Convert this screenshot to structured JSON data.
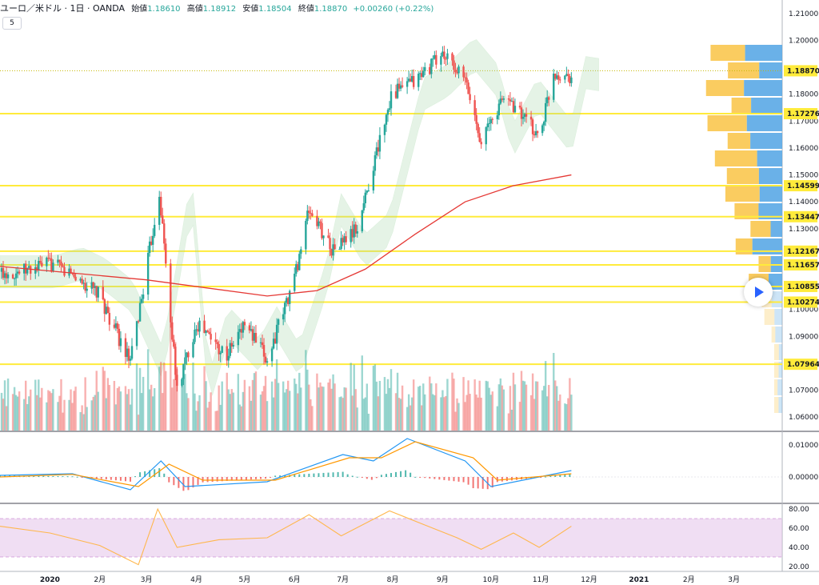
{
  "legend": {
    "symbol": "ユーロ／米ドル · 1日 · OANDA",
    "open_label": "始値",
    "open": "1.18610",
    "high_label": "高値",
    "high": "1.18912",
    "low_label": "安値",
    "low": "1.18504",
    "close_label": "終値",
    "close": "1.18870",
    "change": "+0.00260 (+0.22%)"
  },
  "indicator_toggle": "5",
  "colors": {
    "up": "#26a69a",
    "down": "#ef5350",
    "level_line": "#ffeb3b",
    "ma": "#e53935",
    "macd": "#2196f3",
    "signal": "#ff9800",
    "rsi": "#ffb74d",
    "rsi_band": "#e1bee7",
    "vp_buy": "#5aa9e6",
    "vp_sell": "#f9c74f"
  },
  "chart_data": [
    {
      "type": "candlestick",
      "title": "",
      "x_range": [
        "2019-12-01",
        "2021-03-31"
      ],
      "ylim": [
        1.055,
        1.215
      ],
      "y_ticks": [
        "1.21000",
        "1.20000",
        "1.18000",
        "1.17000",
        "1.16000",
        "1.15000",
        "1.14000",
        "1.13000",
        "1.10000",
        "1.09000",
        "1.07000",
        "1.06000"
      ],
      "x_ticks": [
        "2020",
        "2月",
        "3月",
        "4月",
        "5月",
        "6月",
        "7月",
        "8月",
        "9月",
        "10月",
        "11月",
        "12月",
        "2021",
        "2月",
        "3月"
      ],
      "x_tick_dates": [
        "2020-01-01",
        "2020-02-01",
        "2020-03-01",
        "2020-04-01",
        "2020-05-01",
        "2020-06-01",
        "2020-07-01",
        "2020-08-01",
        "2020-09-01",
        "2020-10-01",
        "2020-11-01",
        "2020-12-01",
        "2021-01-01",
        "2021-02-01",
        "2021-03-01"
      ],
      "price_levels": [
        "1.18870",
        "1.17276",
        "1.14599",
        "1.13447",
        "1.12167",
        "1.11657",
        "1.10855",
        "1.10274",
        "1.07964"
      ],
      "last_price": "1.18870",
      "closes": [
        [
          "2019-12-15",
          1.114
        ],
        [
          "2020-01-01",
          1.117
        ],
        [
          "2020-01-15",
          1.113
        ],
        [
          "2020-02-01",
          1.105
        ],
        [
          "2020-02-20",
          1.08
        ],
        [
          "2020-03-01",
          1.115
        ],
        [
          "2020-03-09",
          1.144
        ],
        [
          "2020-03-20",
          1.07
        ],
        [
          "2020-04-01",
          1.095
        ],
        [
          "2020-04-20",
          1.083
        ],
        [
          "2020-05-01",
          1.095
        ],
        [
          "2020-05-15",
          1.081
        ],
        [
          "2020-06-01",
          1.112
        ],
        [
          "2020-06-10",
          1.137
        ],
        [
          "2020-06-25",
          1.122
        ],
        [
          "2020-07-10",
          1.13
        ],
        [
          "2020-07-31",
          1.18
        ],
        [
          "2020-08-15",
          1.185
        ],
        [
          "2020-09-01",
          1.195
        ],
        [
          "2020-09-15",
          1.185
        ],
        [
          "2020-09-25",
          1.163
        ],
        [
          "2020-10-10",
          1.18
        ],
        [
          "2020-10-31",
          1.164
        ],
        [
          "2020-11-09",
          1.188
        ],
        [
          "2020-11-20",
          1.187
        ]
      ],
      "ma_200": [
        [
          "2019-12-01",
          1.116
        ],
        [
          "2020-03-01",
          1.111
        ],
        [
          "2020-05-15",
          1.105
        ],
        [
          "2020-06-15",
          1.107
        ],
        [
          "2020-07-15",
          1.115
        ],
        [
          "2020-08-15",
          1.128
        ],
        [
          "2020-09-15",
          1.14
        ],
        [
          "2020-10-15",
          1.146
        ],
        [
          "2020-11-20",
          1.15
        ]
      ]
    },
    {
      "type": "line",
      "title": "",
      "ylim": [
        -0.008,
        0.014
      ],
      "y_ticks": [
        "0.01000",
        "0.00000"
      ],
      "series": [
        {
          "values": [
            [
              "2019-12-01",
              0.0005
            ],
            [
              "2020-01-15",
              0.001
            ],
            [
              "2020-02-20",
              -0.004
            ],
            [
              "2020-03-10",
              0.005
            ],
            [
              "2020-03-25",
              -0.003
            ],
            [
              "2020-05-15",
              -0.0015
            ],
            [
              "2020-07-01",
              0.007
            ],
            [
              "2020-07-20",
              0.005
            ],
            [
              "2020-08-10",
              0.012
            ],
            [
              "2020-09-15",
              0.005
            ],
            [
              "2020-10-01",
              -0.003
            ],
            [
              "2020-11-20",
              0.002
            ]
          ]
        },
        {
          "values": [
            [
              "2019-12-01",
              0.0
            ],
            [
              "2020-01-15",
              0.0008
            ],
            [
              "2020-02-25",
              -0.003
            ],
            [
              "2020-03-15",
              0.004
            ],
            [
              "2020-04-05",
              -0.001
            ],
            [
              "2020-05-20",
              -0.001
            ],
            [
              "2020-07-05",
              0.006
            ],
            [
              "2020-07-25",
              0.006
            ],
            [
              "2020-08-15",
              0.011
            ],
            [
              "2020-09-20",
              0.006
            ],
            [
              "2020-10-05",
              -0.001
            ],
            [
              "2020-11-20",
              0.001
            ]
          ]
        }
      ]
    },
    {
      "type": "line",
      "title": "",
      "ylim": [
        15,
        85
      ],
      "y_ticks": [
        "80.00",
        "60.00",
        "40.00",
        "20.00"
      ],
      "band": [
        30,
        70
      ],
      "series": [
        {
          "values": [
            [
              "2019-12-01",
              62
            ],
            [
              "2020-01-01",
              55
            ],
            [
              "2020-02-01",
              42
            ],
            [
              "2020-02-25",
              22
            ],
            [
              "2020-03-08",
              80
            ],
            [
              "2020-03-20",
              40
            ],
            [
              "2020-04-15",
              48
            ],
            [
              "2020-05-15",
              50
            ],
            [
              "2020-06-10",
              74
            ],
            [
              "2020-06-30",
              52
            ],
            [
              "2020-07-30",
              78
            ],
            [
              "2020-08-20",
              64
            ],
            [
              "2020-09-10",
              50
            ],
            [
              "2020-09-25",
              38
            ],
            [
              "2020-10-15",
              55
            ],
            [
              "2020-10-31",
              40
            ],
            [
              "2020-11-20",
              62
            ]
          ]
        }
      ]
    }
  ]
}
